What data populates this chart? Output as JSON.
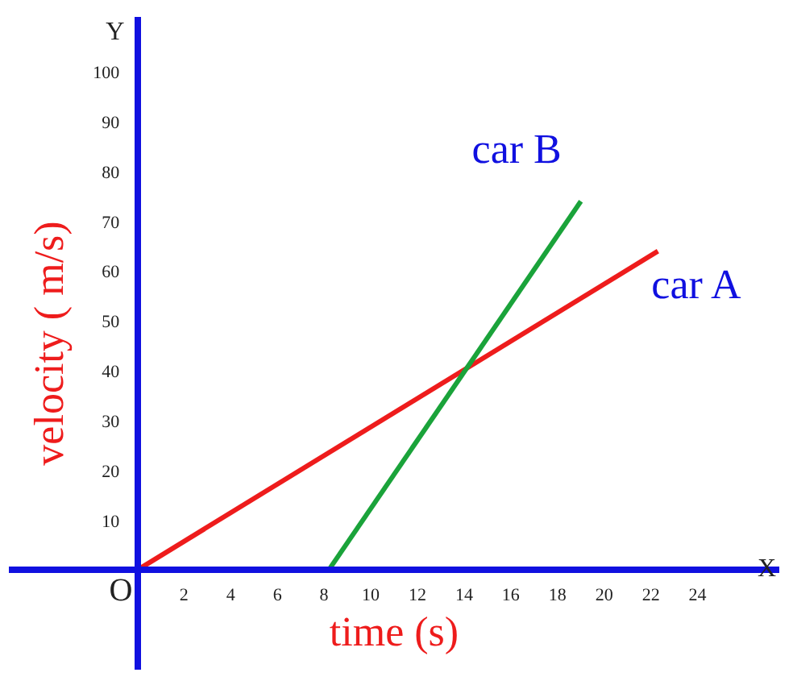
{
  "chart_data": {
    "type": "line",
    "xlabel": "time (s)",
    "ylabel": "velocity ( m/s)",
    "xlim": [
      -5.5,
      27.5
    ],
    "ylim": [
      -20,
      111
    ],
    "xticks": [
      2,
      4,
      6,
      8,
      10,
      12,
      14,
      16,
      18,
      20,
      22,
      24
    ],
    "yticks": [
      10,
      20,
      30,
      40,
      50,
      60,
      70,
      80,
      90,
      100
    ],
    "grid": false,
    "series": [
      {
        "name": "car A",
        "color": "#ee1c1c",
        "x": [
          0,
          22.3
        ],
        "values": [
          0,
          64
        ]
      },
      {
        "name": "car B",
        "color": "#1aa33a",
        "x": [
          8.2,
          19
        ],
        "values": [
          0,
          74
        ]
      }
    ],
    "annotations": [
      "Y",
      "X",
      "O"
    ]
  }
}
